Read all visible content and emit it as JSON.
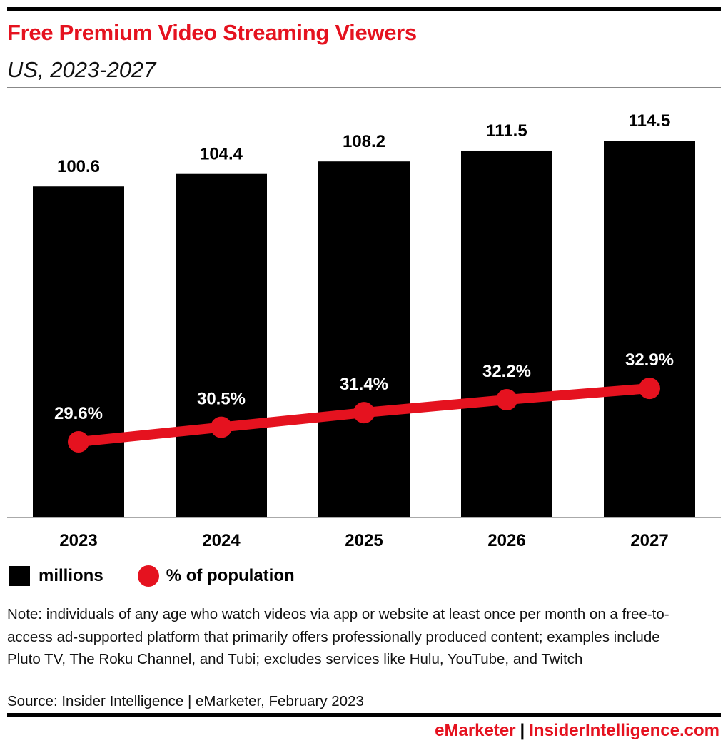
{
  "title": "Free Premium Video Streaming Viewers",
  "subtitle": "US, 2023-2027",
  "chart_data": {
    "type": "bar",
    "categories": [
      "2023",
      "2024",
      "2025",
      "2026",
      "2027"
    ],
    "series": [
      {
        "name": "millions",
        "type": "bar",
        "values": [
          100.6,
          104.4,
          108.2,
          111.5,
          114.5
        ],
        "labels": [
          "100.6",
          "104.4",
          "108.2",
          "111.5",
          "114.5"
        ],
        "color": "#000000"
      },
      {
        "name": "% of population",
        "type": "line",
        "values": [
          29.6,
          30.5,
          31.4,
          32.2,
          32.9
        ],
        "labels": [
          "29.6%",
          "30.5%",
          "31.4%",
          "32.2%",
          "32.9%"
        ],
        "color": "#e5121f"
      }
    ],
    "grid": false,
    "legend_placement": "bottom-left"
  },
  "note": "Note: individuals of any age who watch videos via app or website at least once per month on a free-to-access ad-supported platform that primarily offers professionally produced content; examples include Pluto TV, The Roku Channel, and Tubi; excludes services like Hulu, YouTube, and Twitch",
  "source": "Source: Insider Intelligence | eMarketer, February 2023",
  "footer": {
    "brand1": "eMarketer",
    "sep": "|",
    "brand2": "InsiderIntelligence.com"
  }
}
